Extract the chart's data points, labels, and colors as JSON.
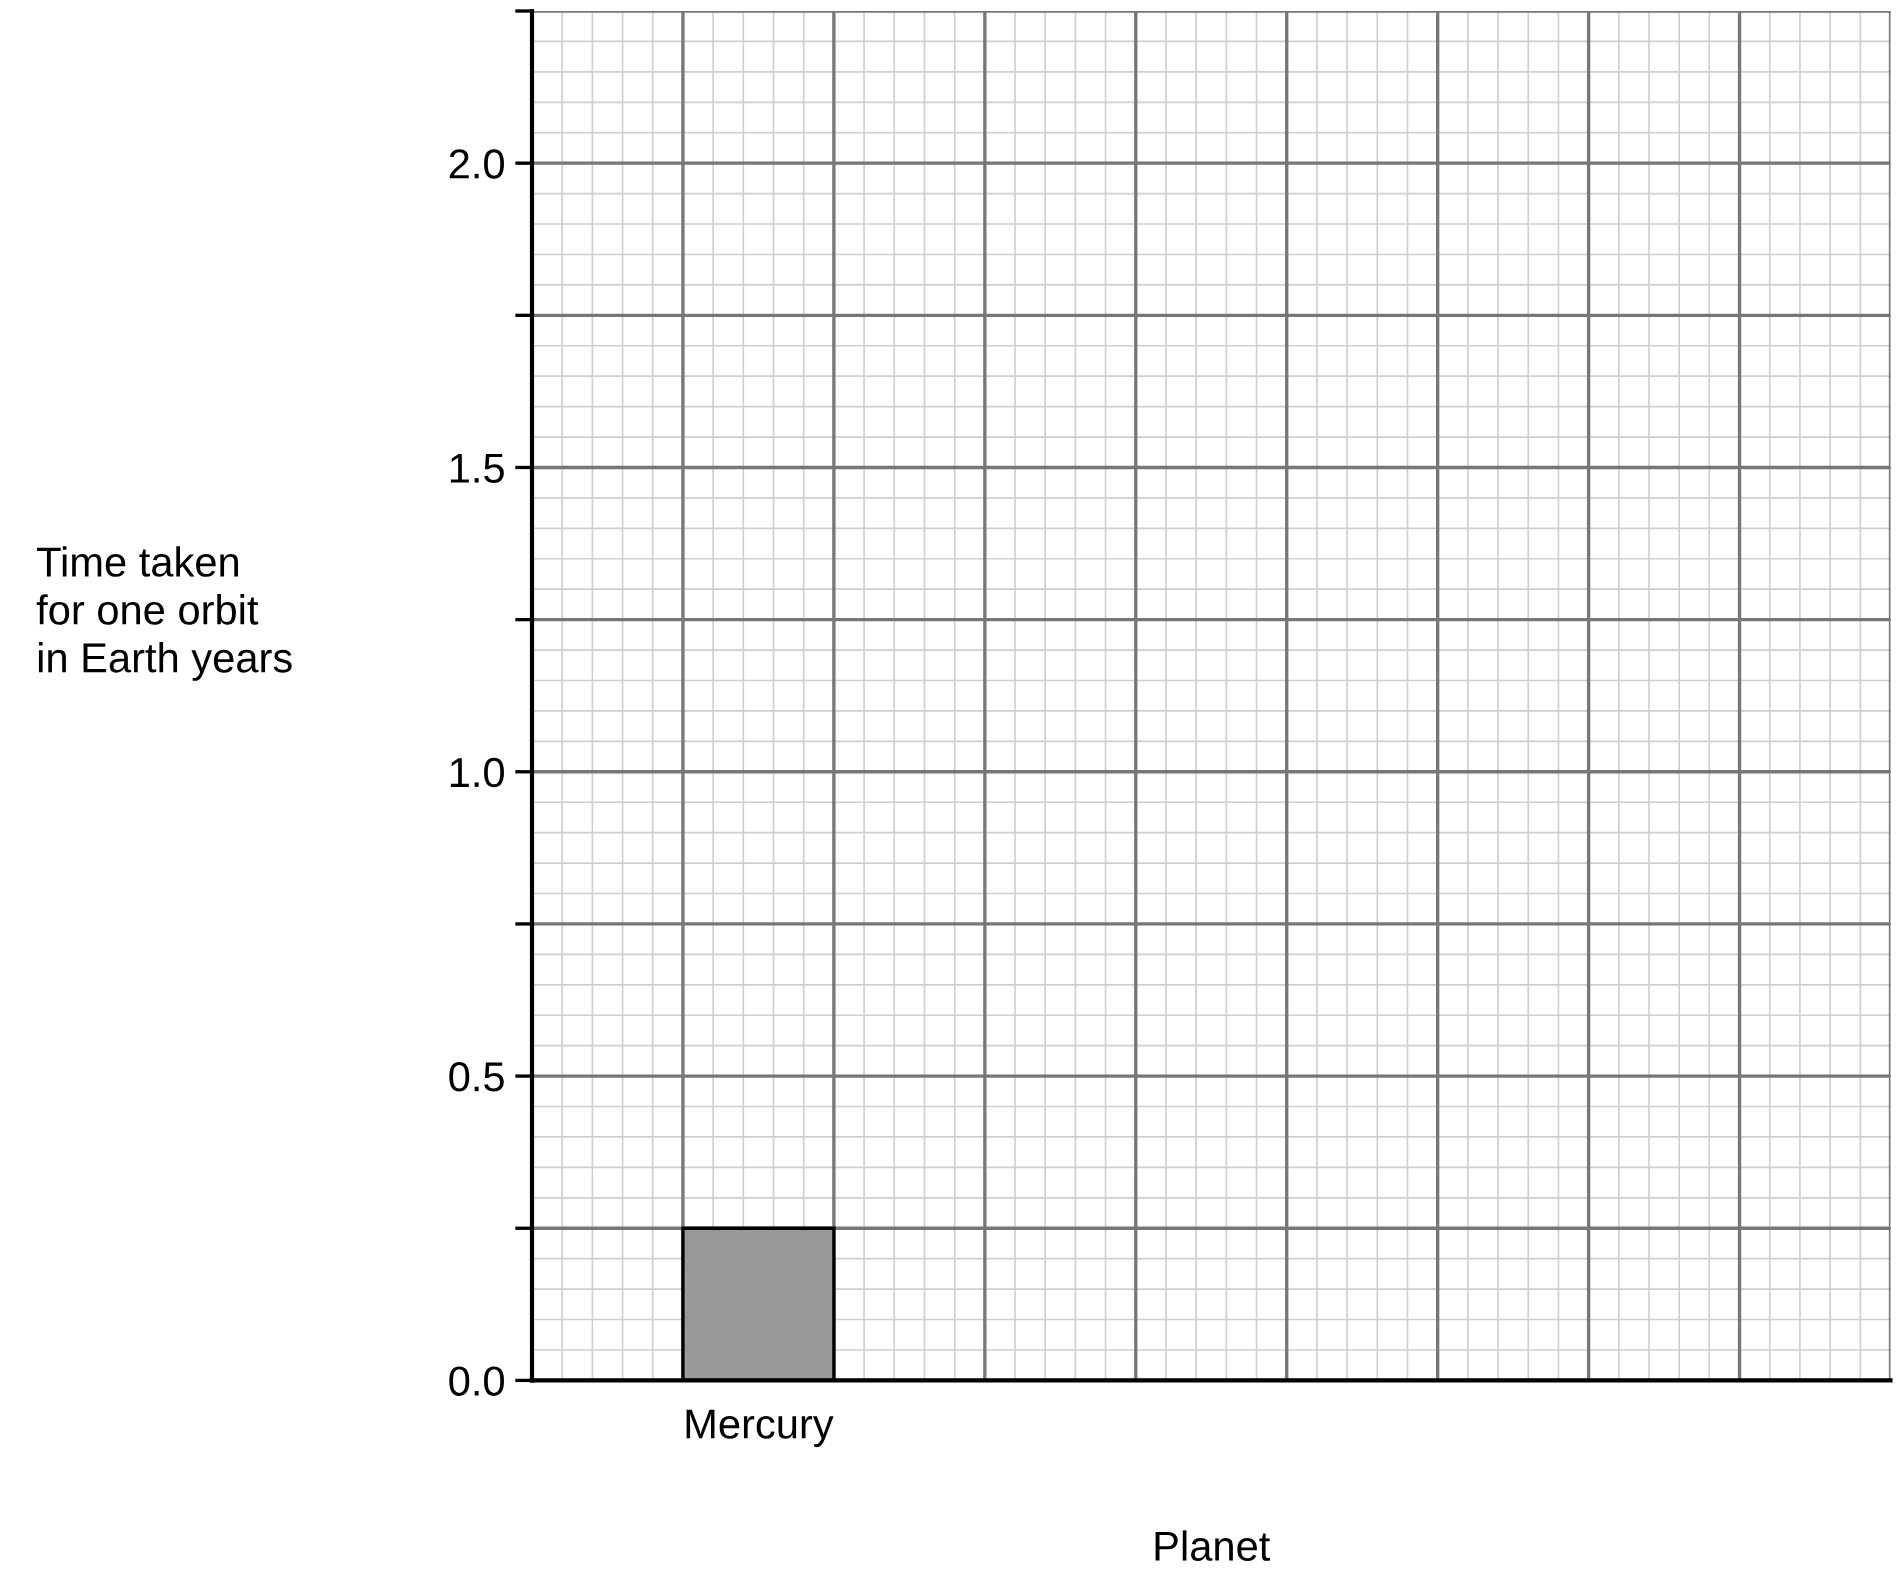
{
  "chart_data": {
    "type": "bar",
    "xlabel": "Planet",
    "ylabel": "Time taken\nfor one orbit\nin Earth years",
    "categories": [
      "Mercury",
      null,
      null,
      null
    ],
    "values": [
      0.25,
      null,
      null,
      null
    ],
    "color": "#999999",
    "ylim": [
      0,
      2.25
    ],
    "yticks": [
      {
        "value": 0,
        "label": "0.0"
      },
      {
        "value": 0.25,
        "label": null
      },
      0.5,
      {
        "value": 0.75,
        "label": null
      },
      {
        "value": 1,
        "label": "1.0"
      },
      {
        "value": 1.25,
        "label": null
      },
      1.5,
      {
        "value": 1.75,
        "label": null
      },
      {
        "value": 2,
        "label": "2.0"
      },
      {
        "value": 2.25,
        "label": null
      }
    ],
    "grid": true
  }
}
